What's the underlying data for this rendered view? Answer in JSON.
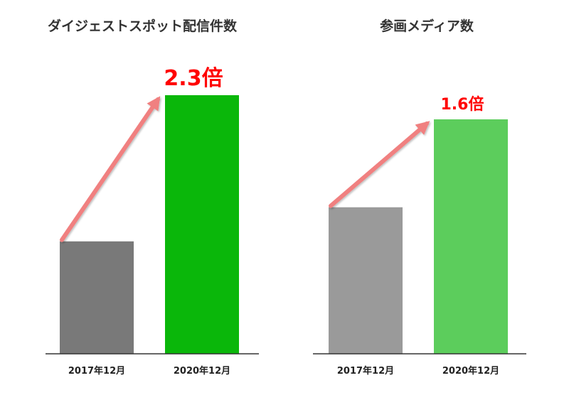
{
  "chart_data": [
    {
      "type": "bar",
      "title": "ダイジェストスポット配信件数",
      "categories": [
        "2017年12月",
        "2020年12月"
      ],
      "values": [
        1,
        2.3
      ],
      "ylim": [
        0,
        2.3
      ],
      "bar_colors": [
        "#797979",
        "#0ab70a"
      ],
      "annotation": {
        "text": "2.3倍",
        "color": "#ff0000"
      },
      "arrow_color": "#f08080",
      "axis_color": "#333333"
    },
    {
      "type": "bar",
      "title": "参画メディア数",
      "categories": [
        "2017年12月",
        "2020年12月"
      ],
      "values": [
        1,
        1.6
      ],
      "ylim": [
        0,
        1.6
      ],
      "bar_colors": [
        "#9a9a9a",
        "#5ccd5c"
      ],
      "annotation": {
        "text": "1.6倍",
        "color": "#ff0000"
      },
      "arrow_color": "#f08080",
      "axis_color": "#333333"
    }
  ]
}
